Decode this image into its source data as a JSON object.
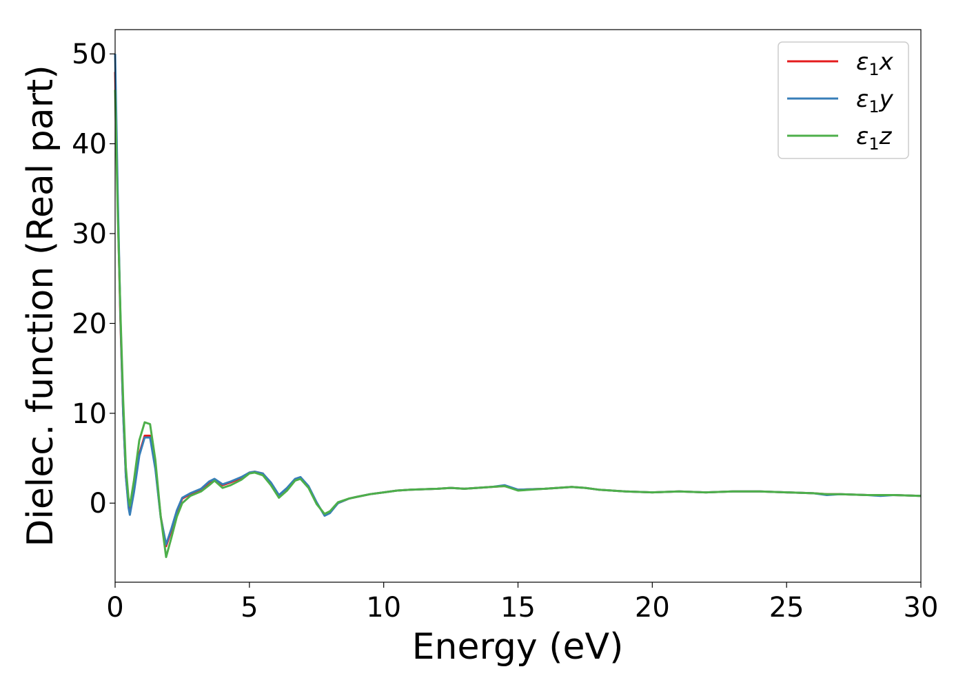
{
  "chart_data": {
    "type": "line",
    "title": "",
    "xlabel": "Energy (eV)",
    "ylabel": "Dielec. function (Real part)",
    "xlim": [
      0,
      30
    ],
    "ylim": [
      -8.8,
      52.7
    ],
    "xticks": [
      0,
      5,
      10,
      15,
      20,
      25,
      30
    ],
    "yticks": [
      0,
      10,
      20,
      30,
      40,
      50
    ],
    "grid": false,
    "legend_position": "top-right",
    "series": [
      {
        "name": "ε1x",
        "color": "#e41a1c",
        "x": [
          0.0,
          0.1,
          0.2,
          0.3,
          0.4,
          0.5,
          0.55,
          0.7,
          0.9,
          1.1,
          1.3,
          1.5,
          1.7,
          1.9,
          2.1,
          2.3,
          2.5,
          2.8,
          3.2,
          3.5,
          3.7,
          4.0,
          4.3,
          4.7,
          5.0,
          5.2,
          5.5,
          5.8,
          6.1,
          6.4,
          6.7,
          6.9,
          7.2,
          7.5,
          7.8,
          8.0,
          8.3,
          8.7,
          9.0,
          9.5,
          10.0,
          10.5,
          11.0,
          12.0,
          12.5,
          13.0,
          14.0,
          14.5,
          15.0,
          16.0,
          17.0,
          17.5,
          18.0,
          19.0,
          20.0,
          21.0,
          22.0,
          23.0,
          24.0,
          25.0,
          26.0,
          26.5,
          27.0,
          28.0,
          28.5,
          29.0,
          30.0
        ],
        "values": [
          48.0,
          33.0,
          20.0,
          10.0,
          3.0,
          -0.2,
          -1.0,
          1.5,
          5.5,
          7.5,
          7.5,
          4.0,
          -1.5,
          -4.8,
          -3.0,
          -1.0,
          0.5,
          1.0,
          1.5,
          2.3,
          2.6,
          2.0,
          2.3,
          2.8,
          3.4,
          3.5,
          3.3,
          2.2,
          0.8,
          1.6,
          2.6,
          2.8,
          1.8,
          0.0,
          -1.3,
          -1.0,
          0.0,
          0.5,
          0.7,
          1.0,
          1.2,
          1.4,
          1.5,
          1.6,
          1.7,
          1.6,
          1.8,
          1.9,
          1.5,
          1.6,
          1.8,
          1.7,
          1.5,
          1.3,
          1.2,
          1.3,
          1.2,
          1.3,
          1.3,
          1.2,
          1.1,
          1.0,
          1.0,
          0.9,
          0.9,
          0.9,
          0.8
        ]
      },
      {
        "name": "ε1y",
        "color": "#377eb8",
        "x": [
          0.0,
          0.1,
          0.2,
          0.3,
          0.4,
          0.5,
          0.55,
          0.7,
          0.9,
          1.1,
          1.3,
          1.5,
          1.7,
          1.9,
          2.1,
          2.3,
          2.5,
          2.8,
          3.2,
          3.5,
          3.7,
          4.0,
          4.3,
          4.7,
          5.0,
          5.2,
          5.5,
          5.8,
          6.1,
          6.4,
          6.7,
          6.9,
          7.2,
          7.5,
          7.8,
          8.0,
          8.3,
          8.7,
          9.0,
          9.5,
          10.0,
          10.5,
          11.0,
          12.0,
          12.5,
          13.0,
          14.0,
          14.5,
          15.0,
          16.0,
          17.0,
          17.5,
          18.0,
          19.0,
          20.0,
          21.0,
          22.0,
          23.0,
          24.0,
          25.0,
          26.0,
          26.5,
          27.0,
          28.0,
          28.5,
          29.0,
          30.0
        ],
        "values": [
          50.0,
          34.0,
          20.5,
          10.0,
          3.0,
          -0.5,
          -1.3,
          1.2,
          5.3,
          7.3,
          7.3,
          3.8,
          -1.6,
          -4.6,
          -2.8,
          -0.8,
          0.6,
          1.1,
          1.6,
          2.4,
          2.7,
          2.1,
          2.4,
          2.9,
          3.4,
          3.5,
          3.3,
          2.3,
          0.9,
          1.7,
          2.7,
          2.9,
          1.9,
          0.1,
          -1.4,
          -1.1,
          0.0,
          0.5,
          0.7,
          1.0,
          1.2,
          1.4,
          1.5,
          1.6,
          1.7,
          1.6,
          1.8,
          2.0,
          1.5,
          1.6,
          1.8,
          1.7,
          1.5,
          1.3,
          1.2,
          1.3,
          1.2,
          1.3,
          1.3,
          1.2,
          1.1,
          0.9,
          1.0,
          0.9,
          0.8,
          0.9,
          0.8
        ]
      },
      {
        "name": "ε1z",
        "color": "#4daf4a",
        "x": [
          0.0,
          0.1,
          0.2,
          0.3,
          0.4,
          0.5,
          0.55,
          0.7,
          0.9,
          1.1,
          1.3,
          1.5,
          1.7,
          1.9,
          2.1,
          2.3,
          2.5,
          2.8,
          3.2,
          3.5,
          3.7,
          4.0,
          4.3,
          4.7,
          5.0,
          5.2,
          5.5,
          5.8,
          6.1,
          6.4,
          6.7,
          6.9,
          7.2,
          7.5,
          7.8,
          8.0,
          8.3,
          8.7,
          9.0,
          9.5,
          10.0,
          10.5,
          11.0,
          12.0,
          12.5,
          13.0,
          14.0,
          14.5,
          15.0,
          16.0,
          17.0,
          17.5,
          18.0,
          19.0,
          20.0,
          21.0,
          22.0,
          23.0,
          24.0,
          25.0,
          26.0,
          26.5,
          27.0,
          28.0,
          28.5,
          29.0,
          30.0
        ],
        "values": [
          46.0,
          32.0,
          21.0,
          11.5,
          4.0,
          0.5,
          -0.3,
          2.5,
          7.0,
          9.0,
          8.8,
          4.8,
          -1.5,
          -6.0,
          -3.8,
          -1.5,
          0.0,
          0.8,
          1.3,
          2.0,
          2.5,
          1.7,
          2.0,
          2.6,
          3.3,
          3.4,
          3.1,
          2.0,
          0.6,
          1.4,
          2.5,
          2.7,
          1.7,
          -0.1,
          -1.2,
          -0.9,
          0.1,
          0.5,
          0.7,
          1.0,
          1.2,
          1.4,
          1.5,
          1.6,
          1.7,
          1.6,
          1.8,
          1.9,
          1.4,
          1.6,
          1.8,
          1.7,
          1.5,
          1.3,
          1.2,
          1.3,
          1.2,
          1.3,
          1.3,
          1.2,
          1.1,
          1.0,
          1.0,
          0.9,
          0.9,
          0.9,
          0.8
        ]
      }
    ]
  }
}
